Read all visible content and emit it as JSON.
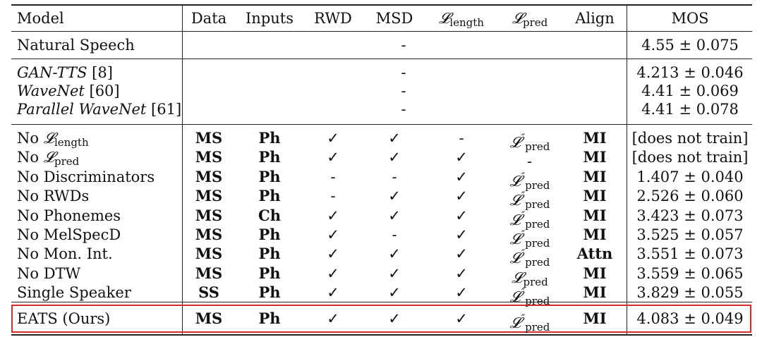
{
  "header": {
    "model": "Model",
    "data": "Data",
    "inputs": "Inputs",
    "rwd": "RWD",
    "msd": "MSD",
    "l_length": "𝓛",
    "l_length_sub": "length",
    "l_pred": "𝓛",
    "l_pred_sub": "pred",
    "align": "Align",
    "mos": "MOS"
  },
  "group1": [
    {
      "model": "Natural Speech",
      "dash": "-",
      "mos": "4.55 ± 0.075"
    }
  ],
  "group2": [
    {
      "model": "GAN-TTS",
      "ref": "[8]",
      "dash": "-",
      "mos": "4.213 ± 0.046"
    },
    {
      "model": "WaveNet",
      "ref": "[60]",
      "dash": "-",
      "mos": "4.41 ± 0.069"
    },
    {
      "model": "Parallel WaveNet",
      "ref": "[61]",
      "dash": "-",
      "mos": "4.41 ± 0.078"
    }
  ],
  "ablations": [
    {
      "model_prefix": "No ",
      "model_math": "𝓛",
      "model_sub": "length",
      "model": "",
      "data": "MS",
      "inputs": "Ph",
      "rwd": "✓",
      "msd": "✓",
      "l_length": "-",
      "l_pred": "𝓛",
      "l_pred_sup": "″",
      "l_pred_sub": "pred",
      "align": "MI",
      "mos": "[does not train]"
    },
    {
      "model_prefix": "No ",
      "model_math": "𝓛",
      "model_sub": "pred",
      "model": "",
      "data": "MS",
      "inputs": "Ph",
      "rwd": "✓",
      "msd": "✓",
      "l_length": "✓",
      "l_pred": "-",
      "l_pred_sup": "",
      "l_pred_sub": "",
      "align": "MI",
      "mos": "[does not train]"
    },
    {
      "model_prefix": "",
      "model_math": "",
      "model_sub": "",
      "model": "No Discriminators",
      "data": "MS",
      "inputs": "Ph",
      "rwd": "-",
      "msd": "-",
      "l_length": "✓",
      "l_pred": "𝓛",
      "l_pred_sup": "″",
      "l_pred_sub": "pred",
      "align": "MI",
      "mos": "1.407 ± 0.040"
    },
    {
      "model_prefix": "",
      "model_math": "",
      "model_sub": "",
      "model": "No RWDs",
      "data": "MS",
      "inputs": "Ph",
      "rwd": "-",
      "msd": "✓",
      "l_length": "✓",
      "l_pred": "𝓛",
      "l_pred_sup": "″",
      "l_pred_sub": "pred",
      "align": "MI",
      "mos": "2.526 ± 0.060"
    },
    {
      "model_prefix": "",
      "model_math": "",
      "model_sub": "",
      "model": "No Phonemes",
      "data": "MS",
      "inputs": "Ch",
      "rwd": "✓",
      "msd": "✓",
      "l_length": "✓",
      "l_pred": "𝓛",
      "l_pred_sup": "″",
      "l_pred_sub": "pred",
      "align": "MI",
      "mos": "3.423 ± 0.073"
    },
    {
      "model_prefix": "",
      "model_math": "",
      "model_sub": "",
      "model": "No MelSpecD",
      "data": "MS",
      "inputs": "Ph",
      "rwd": "✓",
      "msd": "-",
      "l_length": "✓",
      "l_pred": "𝓛",
      "l_pred_sup": "″",
      "l_pred_sub": "pred",
      "align": "MI",
      "mos": "3.525 ± 0.057"
    },
    {
      "model_prefix": "",
      "model_math": "",
      "model_sub": "",
      "model": "No Mon. Int.",
      "data": "MS",
      "inputs": "Ph",
      "rwd": "✓",
      "msd": "✓",
      "l_length": "✓",
      "l_pred": "𝓛",
      "l_pred_sup": "″",
      "l_pred_sub": "pred",
      "align": "Attn",
      "mos": "3.551 ± 0.073"
    },
    {
      "model_prefix": "",
      "model_math": "",
      "model_sub": "",
      "model": "No DTW",
      "data": "MS",
      "inputs": "Ph",
      "rwd": "✓",
      "msd": "✓",
      "l_length": "✓",
      "l_pred": "𝓛",
      "l_pred_sup": "",
      "l_pred_sub": "pred",
      "align": "MI",
      "mos": "3.559 ± 0.065"
    },
    {
      "model_prefix": "",
      "model_math": "",
      "model_sub": "",
      "model": "Single Speaker",
      "data": "SS",
      "inputs": "Ph",
      "rwd": "✓",
      "msd": "✓",
      "l_length": "✓",
      "l_pred": "𝓛",
      "l_pred_sup": "″",
      "l_pred_sub": "pred",
      "align": "MI",
      "mos": "3.829 ± 0.055"
    }
  ],
  "final": {
    "model": "EATS (Ours)",
    "data": "MS",
    "inputs": "Ph",
    "rwd": "✓",
    "msd": "✓",
    "l_length": "✓",
    "l_pred": "𝓛",
    "l_pred_sup": "″",
    "l_pred_sub": "pred",
    "align": "MI",
    "mos": "4.083 ± 0.049"
  },
  "highlight_color": "#d62b2b"
}
